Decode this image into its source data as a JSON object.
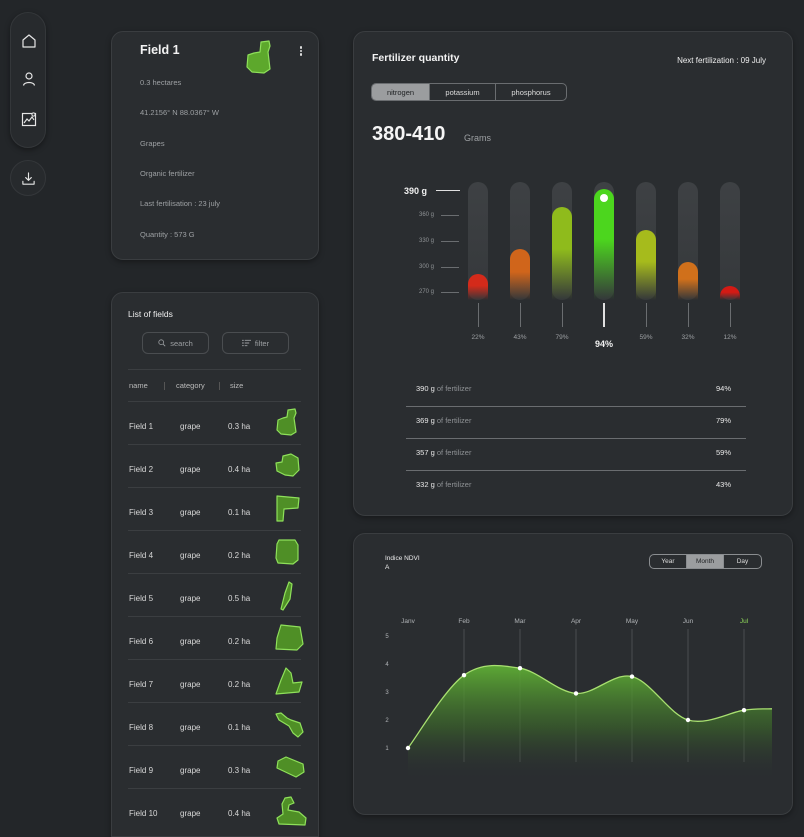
{
  "sidebar": {
    "items": [
      {
        "icon": "home-icon"
      },
      {
        "icon": "user-icon"
      },
      {
        "icon": "chart-image-icon"
      }
    ],
    "download_icon": "download-icon"
  },
  "field_card": {
    "title": "Field 1",
    "area": "0.3 hectares",
    "coordinates": "41.2156° N 88.0367° W",
    "crop": "Grapes",
    "fertilizer_type": "Organic fertilizer",
    "last_fertilisation": "Last fertilisation :  23 july",
    "quantity": "Quantity : 573 G"
  },
  "field_list": {
    "title": "List of fields",
    "search_label": "search",
    "filter_label": "filter",
    "columns": [
      "name",
      "category",
      "size"
    ],
    "rows": [
      {
        "name": "Field 1",
        "category": "grape",
        "size": "0.3 ha"
      },
      {
        "name": "Field 2",
        "category": "grape",
        "size": "0.4 ha"
      },
      {
        "name": "Field 3",
        "category": "grape",
        "size": "0.1 ha"
      },
      {
        "name": "Field 4",
        "category": "grape",
        "size": "0.2 ha"
      },
      {
        "name": "Field 5",
        "category": "grape",
        "size": "0.5 ha"
      },
      {
        "name": "Field 6",
        "category": "grape",
        "size": "0.2 ha"
      },
      {
        "name": "Field 7",
        "category": "grape",
        "size": "0.2 ha"
      },
      {
        "name": "Field 8",
        "category": "grape",
        "size": "0.1 ha"
      },
      {
        "name": "Field 9",
        "category": "grape",
        "size": "0.3 ha"
      },
      {
        "name": "Field 10",
        "category": "grape",
        "size": "0.4 ha"
      }
    ]
  },
  "fertilizer": {
    "title": "Fertilizer quantity",
    "next": "Next fertilization : 09 July",
    "tabs": [
      "nitrogen",
      "potassium",
      "phosphorus"
    ],
    "active_tab": "nitrogen",
    "range": "380-410",
    "range_unit": "Grams",
    "highlight_label": "390 g",
    "y_labels": [
      "360 g",
      "330 g",
      "300 g",
      "270 g"
    ],
    "bars": [
      {
        "pct_label": "22%",
        "level": 0.22,
        "color": "#d42a1a"
      },
      {
        "pct_label": "43%",
        "level": 0.43,
        "color": "#d0651b"
      },
      {
        "pct_label": "79%",
        "level": 0.79,
        "color": "#8fbb1c"
      },
      {
        "pct_label": "94%",
        "level": 0.94,
        "color": "#4cd61e"
      },
      {
        "pct_label": "59%",
        "level": 0.59,
        "color": "#a6bb1c"
      },
      {
        "pct_label": "32%",
        "level": 0.32,
        "color": "#d0701b"
      },
      {
        "pct_label": "12%",
        "level": 0.12,
        "color": "#d41a14"
      }
    ],
    "highlight_index": 3,
    "table": [
      {
        "grams": "390 g",
        "suffix": "of fertilizer",
        "pct": "94%"
      },
      {
        "grams": "369 g",
        "suffix": "of fertilizer",
        "pct": "79%"
      },
      {
        "grams": "357 g",
        "suffix": "of fertilizer",
        "pct": "59%"
      },
      {
        "grams": "332 g",
        "suffix": "of fertilizer",
        "pct": "43%"
      }
    ]
  },
  "ndvi": {
    "title_line1": "Indice NDVI",
    "title_line2": "A",
    "periods": [
      "Year",
      "Month",
      "Day"
    ],
    "active_period": "Month"
  },
  "chart_data": {
    "type": "area",
    "title": "Indice NDVI",
    "x": [
      "Janv",
      "Feb",
      "Mar",
      "Apr",
      "May",
      "Jun",
      "Jul"
    ],
    "highlight_x": "Jul",
    "ylim": [
      1,
      5
    ],
    "yticks": [
      1,
      2,
      3,
      4,
      5
    ],
    "series": [
      {
        "values": [
          1.0,
          3.6,
          3.85,
          2.95,
          3.55,
          2.0,
          2.35
        ]
      }
    ],
    "grid": true,
    "accent": "#8ed65a"
  },
  "colors": {
    "accent_green": "#6fd23a",
    "background": "#232629",
    "card": "#2a2d30"
  }
}
